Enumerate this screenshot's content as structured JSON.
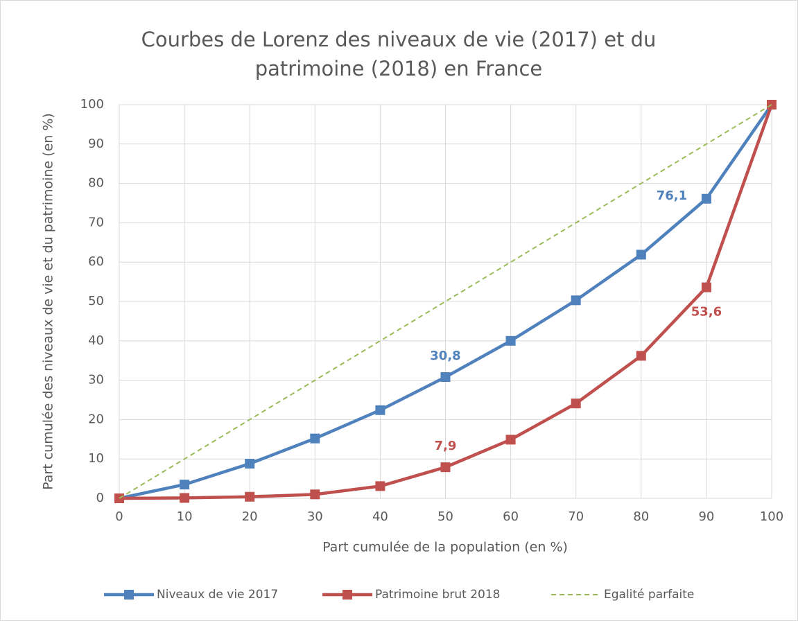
{
  "chart_data": {
    "type": "line",
    "title": "Courbes de Lorenz des niveaux de vie (2017) et du patrimoine (2018) en France",
    "xlabel": "Part cumulée de la population (en %)",
    "ylabel": "Part cumulée des niveaux de vie et du patrimoine (en %)",
    "x": [
      0,
      10,
      20,
      30,
      40,
      50,
      60,
      70,
      80,
      90,
      100
    ],
    "series": [
      {
        "name": "Niveaux de vie 2017",
        "color": "#4f81bd",
        "marker": "square",
        "dash": false,
        "values": [
          0,
          3.5,
          8.8,
          15.2,
          22.4,
          30.8,
          40,
          50.3,
          61.9,
          76.1,
          100
        ],
        "value_labels": [
          null,
          null,
          null,
          null,
          null,
          "30,8",
          null,
          null,
          null,
          "76,1",
          null
        ]
      },
      {
        "name": "Patrimoine brut 2018",
        "color": "#c0504d",
        "marker": "square",
        "dash": false,
        "values": [
          0,
          0.1,
          0.4,
          1.0,
          3.1,
          7.9,
          14.9,
          24.1,
          36.2,
          53.6,
          100
        ],
        "value_labels": [
          null,
          null,
          null,
          null,
          null,
          "7,9",
          null,
          null,
          null,
          "53,6",
          null
        ]
      },
      {
        "name": "Egalité parfaite",
        "color": "#9bbb59",
        "marker": null,
        "dash": true,
        "values": [
          0,
          10,
          20,
          30,
          40,
          50,
          60,
          70,
          80,
          90,
          100
        ]
      }
    ],
    "xlim": [
      0,
      100
    ],
    "xticks": [
      0,
      10,
      20,
      30,
      40,
      50,
      60,
      70,
      80,
      90,
      100
    ],
    "ylim": [
      0,
      100
    ],
    "yticks": [
      0,
      10,
      20,
      30,
      40,
      50,
      60,
      70,
      80,
      90,
      100
    ],
    "grid": true,
    "legend": "bottom"
  }
}
